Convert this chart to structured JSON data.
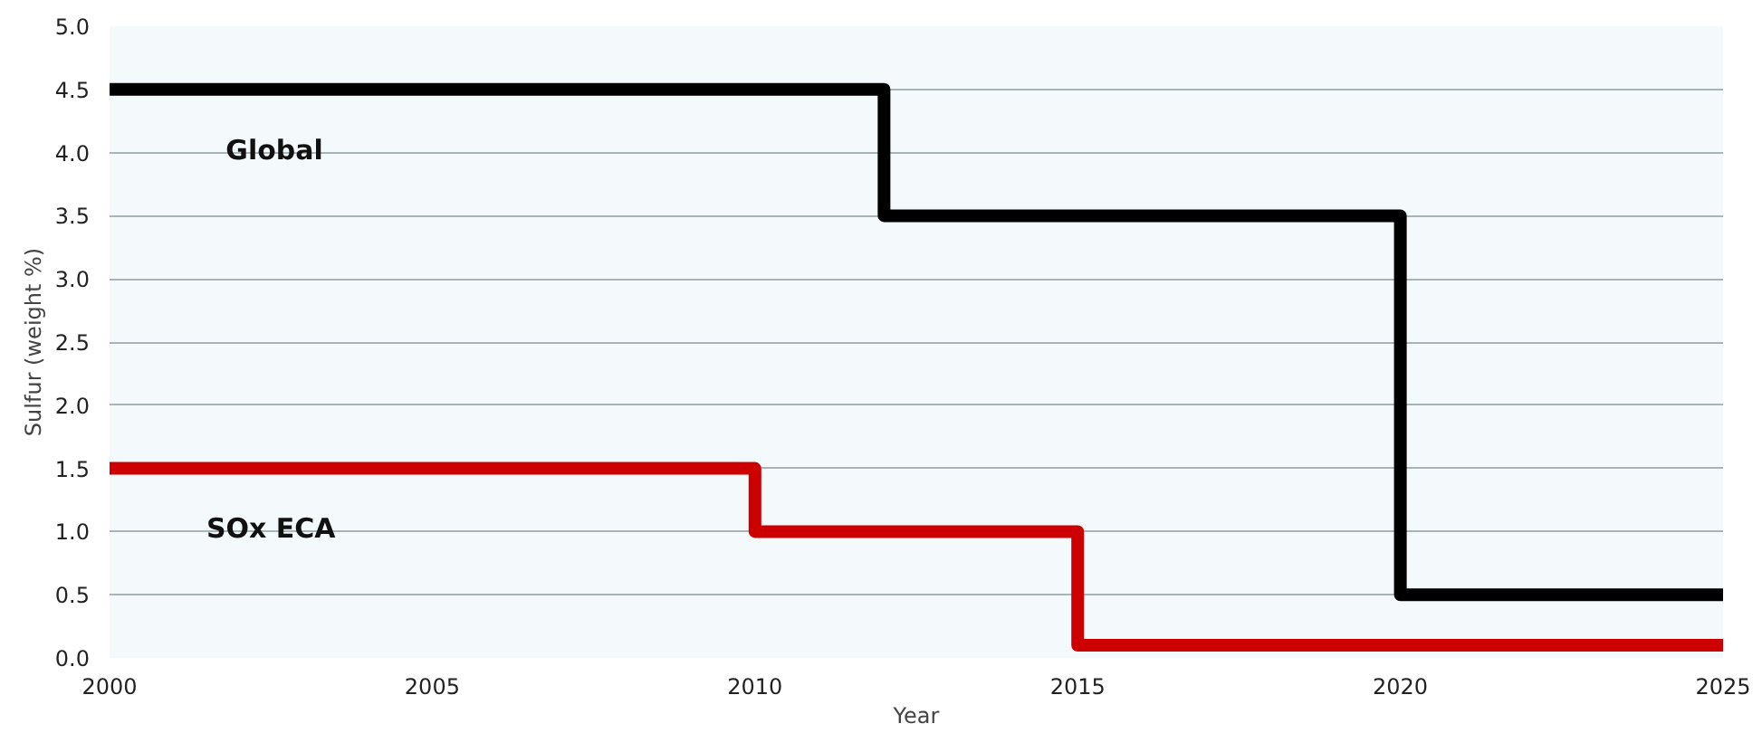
{
  "chart_data": {
    "type": "step",
    "xlabel": "Year",
    "ylabel": "Sulfur (weight %)",
    "x": [
      2000,
      2012,
      2020,
      2025
    ],
    "series": [
      {
        "name": "Global",
        "color": "#000000",
        "values": [
          4.5,
          3.5,
          0.5,
          0.5
        ]
      },
      {
        "name": "SOx ECA",
        "color": "#cc0000",
        "x": [
          2000,
          2010,
          2015,
          2025
        ],
        "values": [
          1.5,
          1.0,
          0.1,
          0.1
        ]
      }
    ],
    "xlim": [
      2000,
      2025
    ],
    "xticks": [
      2000,
      2005,
      2010,
      2015,
      2020,
      2025
    ],
    "ylim": [
      0,
      5
    ],
    "yticks": [
      {
        "value": 0,
        "label": "0.0"
      },
      {
        "value": 0.5,
        "label": "0.5"
      },
      {
        "value": 1,
        "label": "1.0"
      },
      {
        "value": 1.5,
        "label": "1.5"
      },
      {
        "value": 2,
        "label": "2.0"
      },
      {
        "value": 2.5,
        "label": "2.5"
      },
      {
        "value": 3,
        "label": "3.0"
      },
      {
        "value": 3.5,
        "label": "3.5"
      },
      {
        "value": 4,
        "label": "4.0"
      },
      {
        "value": 4.5,
        "label": "4.5"
      },
      {
        "value": 5,
        "label": "5.0"
      }
    ],
    "grid": "y",
    "marker": "none",
    "line_style": "solid"
  }
}
